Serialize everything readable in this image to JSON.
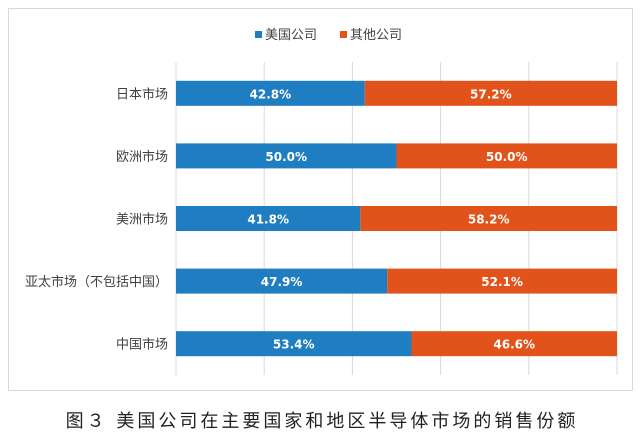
{
  "chart_data": {
    "type": "bar",
    "orientation": "horizontal",
    "stacked": true,
    "percent": true,
    "categories": [
      "日本市场",
      "欧洲市场",
      "美洲市场",
      "亚太市场（不包括中国）",
      "中国市场"
    ],
    "series": [
      {
        "name": "美国公司",
        "values": [
          42.8,
          50.0,
          41.8,
          47.9,
          53.4
        ],
        "labels": [
          "42.8%",
          "50.0%",
          "41.8%",
          "47.9%",
          "53.4%"
        ],
        "color": "#1f7dc1"
      },
      {
        "name": "其他公司",
        "values": [
          57.2,
          50.0,
          58.2,
          52.1,
          46.6
        ],
        "labels": [
          "57.2%",
          "50.0%",
          "58.2%",
          "52.1%",
          "46.6%"
        ],
        "color": "#e2521b"
      }
    ],
    "xlim": [
      0,
      100
    ],
    "grid": true,
    "legend": "top"
  },
  "caption": "图３ 美国公司在主要国家和地区半导体市场的销售份额"
}
